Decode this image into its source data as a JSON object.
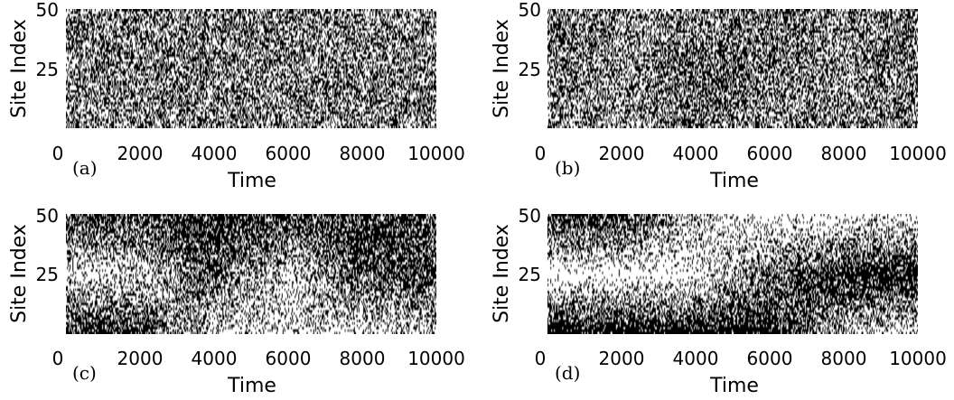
{
  "chart_data": [
    {
      "type": "heatmap",
      "panel_label": "(a)",
      "xlabel": "Time",
      "ylabel": "Site Index",
      "xlim": [
        0,
        10000
      ],
      "ylim": [
        1,
        50
      ],
      "xticks": [
        "0",
        "2000",
        "4000",
        "6000",
        "8000",
        "10000"
      ],
      "yticks": [
        "25",
        "50"
      ],
      "colors": {
        "occupied": "#000000",
        "empty": "#ffffff"
      },
      "occupied_fraction_profile": {
        "time": [
          0,
          2000,
          4000,
          6000,
          8000,
          10000
        ],
        "site": [
          1,
          25,
          50
        ],
        "values": [
          [
            0.5,
            0.5,
            0.5
          ],
          [
            0.5,
            0.5,
            0.5
          ],
          [
            0.5,
            0.5,
            0.5
          ],
          [
            0.5,
            0.5,
            0.5
          ],
          [
            0.5,
            0.5,
            0.5
          ],
          [
            0.5,
            0.5,
            0.5
          ]
        ]
      }
    },
    {
      "type": "heatmap",
      "panel_label": "(b)",
      "xlabel": "Time",
      "ylabel": "Site Index",
      "xlim": [
        0,
        10000
      ],
      "ylim": [
        1,
        50
      ],
      "xticks": [
        "0",
        "2000",
        "4000",
        "6000",
        "8000",
        "10000"
      ],
      "yticks": [
        "25",
        "50"
      ],
      "colors": {
        "occupied": "#000000",
        "empty": "#ffffff"
      },
      "occupied_fraction_profile": {
        "time": [
          0,
          2000,
          4000,
          6000,
          8000,
          10000
        ],
        "site": [
          1,
          25,
          50
        ],
        "values": [
          [
            0.5,
            0.6,
            0.55
          ],
          [
            0.45,
            0.4,
            0.5
          ],
          [
            0.6,
            0.65,
            0.5
          ],
          [
            0.45,
            0.55,
            0.6
          ],
          [
            0.55,
            0.45,
            0.5
          ],
          [
            0.5,
            0.6,
            0.55
          ]
        ]
      }
    },
    {
      "type": "heatmap",
      "panel_label": "(c)",
      "xlabel": "Time",
      "ylabel": "Site Index",
      "xlim": [
        0,
        10000
      ],
      "ylim": [
        1,
        50
      ],
      "xticks": [
        "0",
        "2000",
        "4000",
        "6000",
        "8000",
        "10000"
      ],
      "yticks": [
        "25",
        "50"
      ],
      "colors": {
        "occupied": "#000000",
        "empty": "#ffffff"
      },
      "occupied_fraction_profile": {
        "time": [
          0,
          2000,
          4000,
          6000,
          8000,
          10000
        ],
        "site": [
          1,
          25,
          50
        ],
        "values": [
          [
            0.85,
            0.2,
            0.8
          ],
          [
            0.8,
            0.2,
            0.75
          ],
          [
            0.15,
            0.7,
            0.85
          ],
          [
            0.25,
            0.2,
            0.8
          ],
          [
            0.2,
            0.7,
            0.8
          ],
          [
            0.25,
            0.75,
            0.6
          ]
        ]
      }
    },
    {
      "type": "heatmap",
      "panel_label": "(d)",
      "xlabel": "Time",
      "ylabel": "Site Index",
      "xlim": [
        0,
        10000
      ],
      "ylim": [
        1,
        50
      ],
      "xticks": [
        "0",
        "2000",
        "4000",
        "6000",
        "8000",
        "10000"
      ],
      "yticks": [
        "25",
        "50"
      ],
      "colors": {
        "occupied": "#000000",
        "empty": "#ffffff"
      },
      "occupied_fraction_profile": {
        "time": [
          0,
          2000,
          4000,
          6000,
          8000,
          10000
        ],
        "site": [
          1,
          25,
          50
        ],
        "values": [
          [
            0.95,
            0.05,
            0.85
          ],
          [
            0.95,
            0.05,
            0.8
          ],
          [
            0.95,
            0.1,
            0.3
          ],
          [
            0.9,
            0.55,
            0.05
          ],
          [
            0.3,
            0.9,
            0.05
          ],
          [
            0.15,
            0.9,
            0.1
          ]
        ]
      }
    }
  ]
}
